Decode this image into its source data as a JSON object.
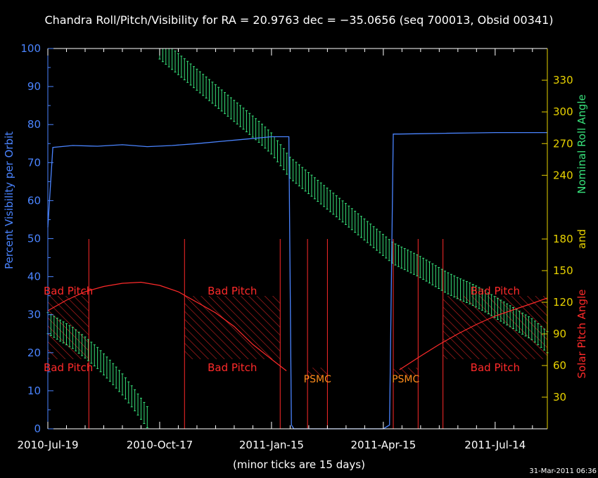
{
  "chart_data": {
    "type": "line",
    "title": "Chandra Roll/Pitch/Visibility for RA = 20.9763 dec = −35.0656 (seq 700013, Obsid 00341)",
    "left_axis_label": "Percent Visibility per Orbit",
    "right_axis_label_parts": {
      "roll": "Nominal Roll Angle",
      "and": "and",
      "pitch": "Solar Pitch Angle"
    },
    "xlabel": "(minor ticks are 15 days)",
    "timestamp": "31-Mar-2011 06:36",
    "x_tick_labels": [
      {
        "day": 0,
        "label": "2010-Jul-19"
      },
      {
        "day": 90,
        "label": "2010-Oct-17"
      },
      {
        "day": 180,
        "label": "2011-Jan-15"
      },
      {
        "day": 270,
        "label": "2011-Apr-15"
      },
      {
        "day": 360,
        "label": "2011-Jul-14"
      }
    ],
    "xlim_days": [
      0,
      402
    ],
    "visibility_ylim": [
      0,
      100
    ],
    "visibility_ticks": [
      0,
      10,
      20,
      30,
      40,
      50,
      60,
      70,
      80,
      90,
      100
    ],
    "roll_ticks": [
      240,
      270,
      300,
      330
    ],
    "pitch_ticks": [
      30,
      60,
      90,
      120,
      150,
      180
    ],
    "angle_ylim": [
      0,
      360
    ],
    "colors": {
      "visibility": "#4a84ff",
      "roll": "#37e07a",
      "pitch": "#ff2a2a",
      "bad_pitch_fill": "#c02020",
      "psmc": "#ff8c1a",
      "right_axis": "#e8d200",
      "text": "#ffffff"
    },
    "series": [
      {
        "name": "Percent Visibility per Orbit",
        "x": [
          0,
          4,
          20,
          40,
          60,
          80,
          100,
          120,
          140,
          160,
          180,
          194,
          196,
          198,
          228,
          270,
          275,
          278,
          283,
          300,
          320,
          340,
          360,
          380,
          402
        ],
        "y": [
          53,
          74,
          74.5,
          74.3,
          74.7,
          74.2,
          74.5,
          75,
          75.6,
          76.2,
          76.8,
          76.8,
          1,
          0,
          0,
          0,
          1,
          77.5,
          77.5,
          77.6,
          77.7,
          77.8,
          77.9,
          77.9,
          77.9
        ]
      },
      {
        "name": "Nominal Roll Angle",
        "x": [
          0,
          10,
          20,
          30,
          40,
          50,
          60,
          70,
          80,
          90,
          160,
          170,
          180,
          190,
          194,
          278,
          290,
          300,
          310,
          320,
          330,
          340,
          350,
          360,
          370,
          380,
          390,
          402
        ],
        "y": [
          100,
          93,
          86,
          77,
          67,
          55,
          42,
          27,
          11,
          360,
          291,
          281,
          270,
          255,
          248,
          166,
          159,
          153,
          146,
          139,
          133,
          128,
          122,
          115,
          108,
          101,
          94,
          82
        ],
        "band_half_width": 10
      },
      {
        "name": "Solar Pitch Angle",
        "x": [
          0,
          15,
          30,
          45,
          60,
          75,
          90,
          105,
          120,
          135,
          150,
          165,
          180,
          192,
          283,
          300,
          315,
          330,
          345,
          360,
          375,
          390,
          402
        ],
        "y": [
          112,
          122,
          130,
          135,
          138,
          139,
          136,
          130,
          120,
          110,
          97,
          80,
          66,
          55,
          56,
          69,
          80,
          90,
          99,
          107,
          113,
          119,
          124
        ]
      }
    ],
    "bad_pitch_regions": [
      {
        "x0": 0,
        "x1": 33,
        "top_label": "Bad Pitch",
        "bottom_label": "Bad Pitch"
      },
      {
        "x0": 110,
        "x1": 187,
        "top_label": "Bad Pitch",
        "bottom_label": "Bad Pitch"
      },
      {
        "x0": 318,
        "x1": 402,
        "top_label": "Bad Pitch",
        "bottom_label": "Bad Pitch"
      }
    ],
    "psmc_regions": [
      {
        "x0": 209,
        "x1": 225,
        "label": "PSMC"
      },
      {
        "x0": 278,
        "x1": 298,
        "label": "PSMC"
      }
    ],
    "boundary_lines_days": [
      0,
      33,
      110,
      187,
      209,
      225,
      278,
      298,
      318,
      402
    ]
  }
}
